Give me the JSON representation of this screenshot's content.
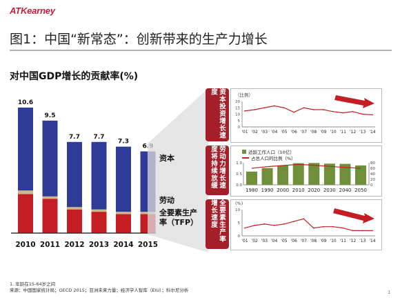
{
  "header": {
    "logo": "ATKearney",
    "title": "图1：中国“新常态”：创新带来的生产力增长",
    "subtitle": "对中国GDP增长的贡献率(%)"
  },
  "footer": {
    "note_1": "1. 年龄在15-64岁之间",
    "note_2": "来源：中国国家统计局；OECD 2015；亚洲未来力量；经济学人智库（EIU）；科尔尼分析",
    "page": "1"
  },
  "legend_left": {
    "capital": "资本",
    "labor": "劳动",
    "tfp": "全要素生产率（TFP）"
  },
  "colors": {
    "capital": "#2f3b99",
    "labor": "#c9b98a",
    "tfp": "#c41e24",
    "panel_side": "#a51f2b",
    "bar_green": "#6f8f3a",
    "line_red": "#c41e24"
  },
  "chart_data": [
    {
      "type": "bar",
      "stacked": true,
      "title": "对中国GDP增长的贡献率(%)",
      "categories": [
        "2010",
        "2011",
        "2012",
        "2013",
        "2014",
        "2015"
      ],
      "totals": [
        10.6,
        9.5,
        7.7,
        7.7,
        7.3,
        6.9
      ],
      "series": [
        {
          "name": "全要素生产率（TFP）",
          "values": [
            3.3,
            2.9,
            2.0,
            1.8,
            1.6,
            1.6
          ]
        },
        {
          "name": "劳动",
          "values": [
            0.3,
            0.2,
            0.2,
            0.2,
            0.2,
            0.2
          ]
        },
        {
          "name": "资本",
          "values": [
            7.0,
            6.4,
            5.5,
            5.7,
            5.5,
            5.1
          ]
        }
      ],
      "ylim": [
        0,
        10.6
      ]
    },
    {
      "type": "line",
      "side_label": "资本投资增长速度",
      "unit": "（比例）",
      "x": [
        "'01",
        "'02",
        "'03",
        "'04",
        "'05",
        "'06",
        "'07",
        "'08",
        "'09",
        "'10",
        "'11",
        "'12",
        "'13",
        "'14"
      ],
      "yticks": [
        0,
        5,
        10,
        15,
        20
      ],
      "ylim": [
        0,
        20
      ],
      "values": [
        12.5,
        13.5,
        15.0,
        16.5,
        15.0,
        11.5,
        15.0,
        13.5,
        13.5,
        12.0,
        11.0,
        12.0,
        10.0,
        9.5
      ],
      "trend": "down"
    },
    {
      "type": "bar",
      "side_label": "劳动力增长速度将持续放缓",
      "x": [
        "1980",
        "1990",
        "2000",
        "2010",
        "2020",
        "2030",
        "2040",
        "2050"
      ],
      "series": [
        {
          "name": "适龄工作人口（10亿）",
          "type": "bar",
          "values": [
            0.6,
            0.76,
            0.87,
            0.98,
            0.99,
            0.96,
            0.95,
            0.88
          ],
          "ylim": [
            0,
            1.0
          ],
          "yticks": [
            0,
            0.5,
            1.0
          ]
        },
        {
          "name": "占总人口的比例（%）",
          "type": "line",
          "values": [
            60,
            66,
            70,
            74,
            71,
            67,
            63,
            60
          ],
          "ylim": [
            0,
            80
          ],
          "yticks": [
            0,
            20,
            40,
            60,
            80
          ]
        }
      ]
    },
    {
      "type": "line",
      "side_label": "全要素生产率增长速度",
      "unit": "(%)",
      "x": [
        "'01",
        "'02",
        "'03",
        "'04",
        "'05",
        "'06",
        "'07",
        "'08",
        "'09",
        "'10",
        "'11",
        "'12",
        "'13",
        "'14"
      ],
      "yticks": [
        0,
        5,
        10
      ],
      "ylim": [
        0,
        10
      ],
      "values": [
        3.0,
        4.0,
        4.5,
        4.0,
        4.5,
        5.5,
        6.5,
        3.0,
        3.5,
        3.5,
        3.0,
        2.0,
        2.0,
        2.0
      ],
      "trend": "down"
    }
  ]
}
